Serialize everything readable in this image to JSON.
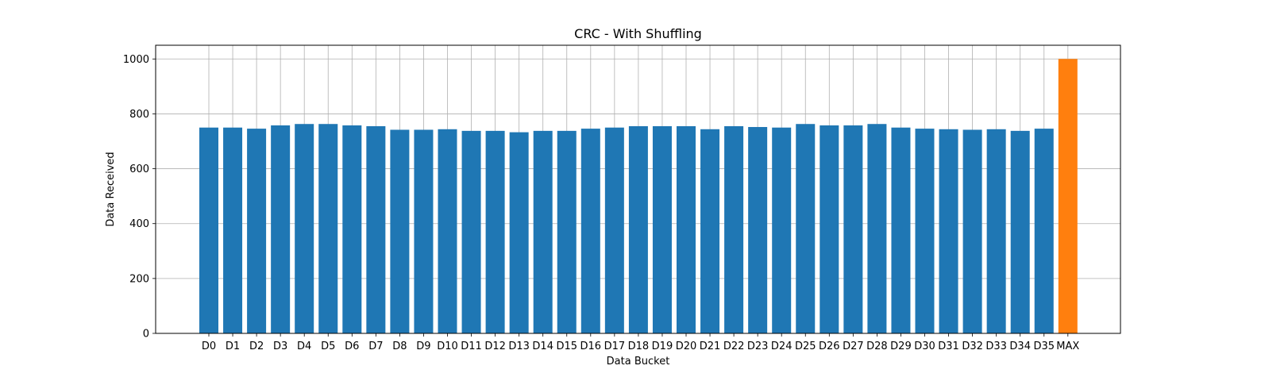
{
  "chart_data": {
    "type": "bar",
    "title": "CRC - With Shuffling",
    "xlabel": "Data Bucket",
    "ylabel": "Data Received",
    "ylim": [
      0,
      1050
    ],
    "yticks": [
      0,
      200,
      400,
      600,
      800,
      1000
    ],
    "grid": true,
    "categories": [
      "D0",
      "D1",
      "D2",
      "D3",
      "D4",
      "D5",
      "D6",
      "D7",
      "D8",
      "D9",
      "D10",
      "D11",
      "D12",
      "D13",
      "D14",
      "D15",
      "D16",
      "D17",
      "D18",
      "D19",
      "D20",
      "D21",
      "D22",
      "D23",
      "D24",
      "D25",
      "D26",
      "D27",
      "D28",
      "D29",
      "D30",
      "D31",
      "D32",
      "D33",
      "D34",
      "D35",
      "MAX"
    ],
    "values": [
      750,
      750,
      746,
      758,
      763,
      763,
      758,
      755,
      742,
      742,
      744,
      738,
      738,
      733,
      738,
      738,
      746,
      750,
      755,
      755,
      755,
      744,
      755,
      752,
      750,
      763,
      758,
      758,
      763,
      750,
      746,
      744,
      742,
      744,
      738,
      746,
      1000
    ],
    "bar_colors": {
      "default": "#1f77b4",
      "MAX": "#ff7f0e"
    }
  }
}
